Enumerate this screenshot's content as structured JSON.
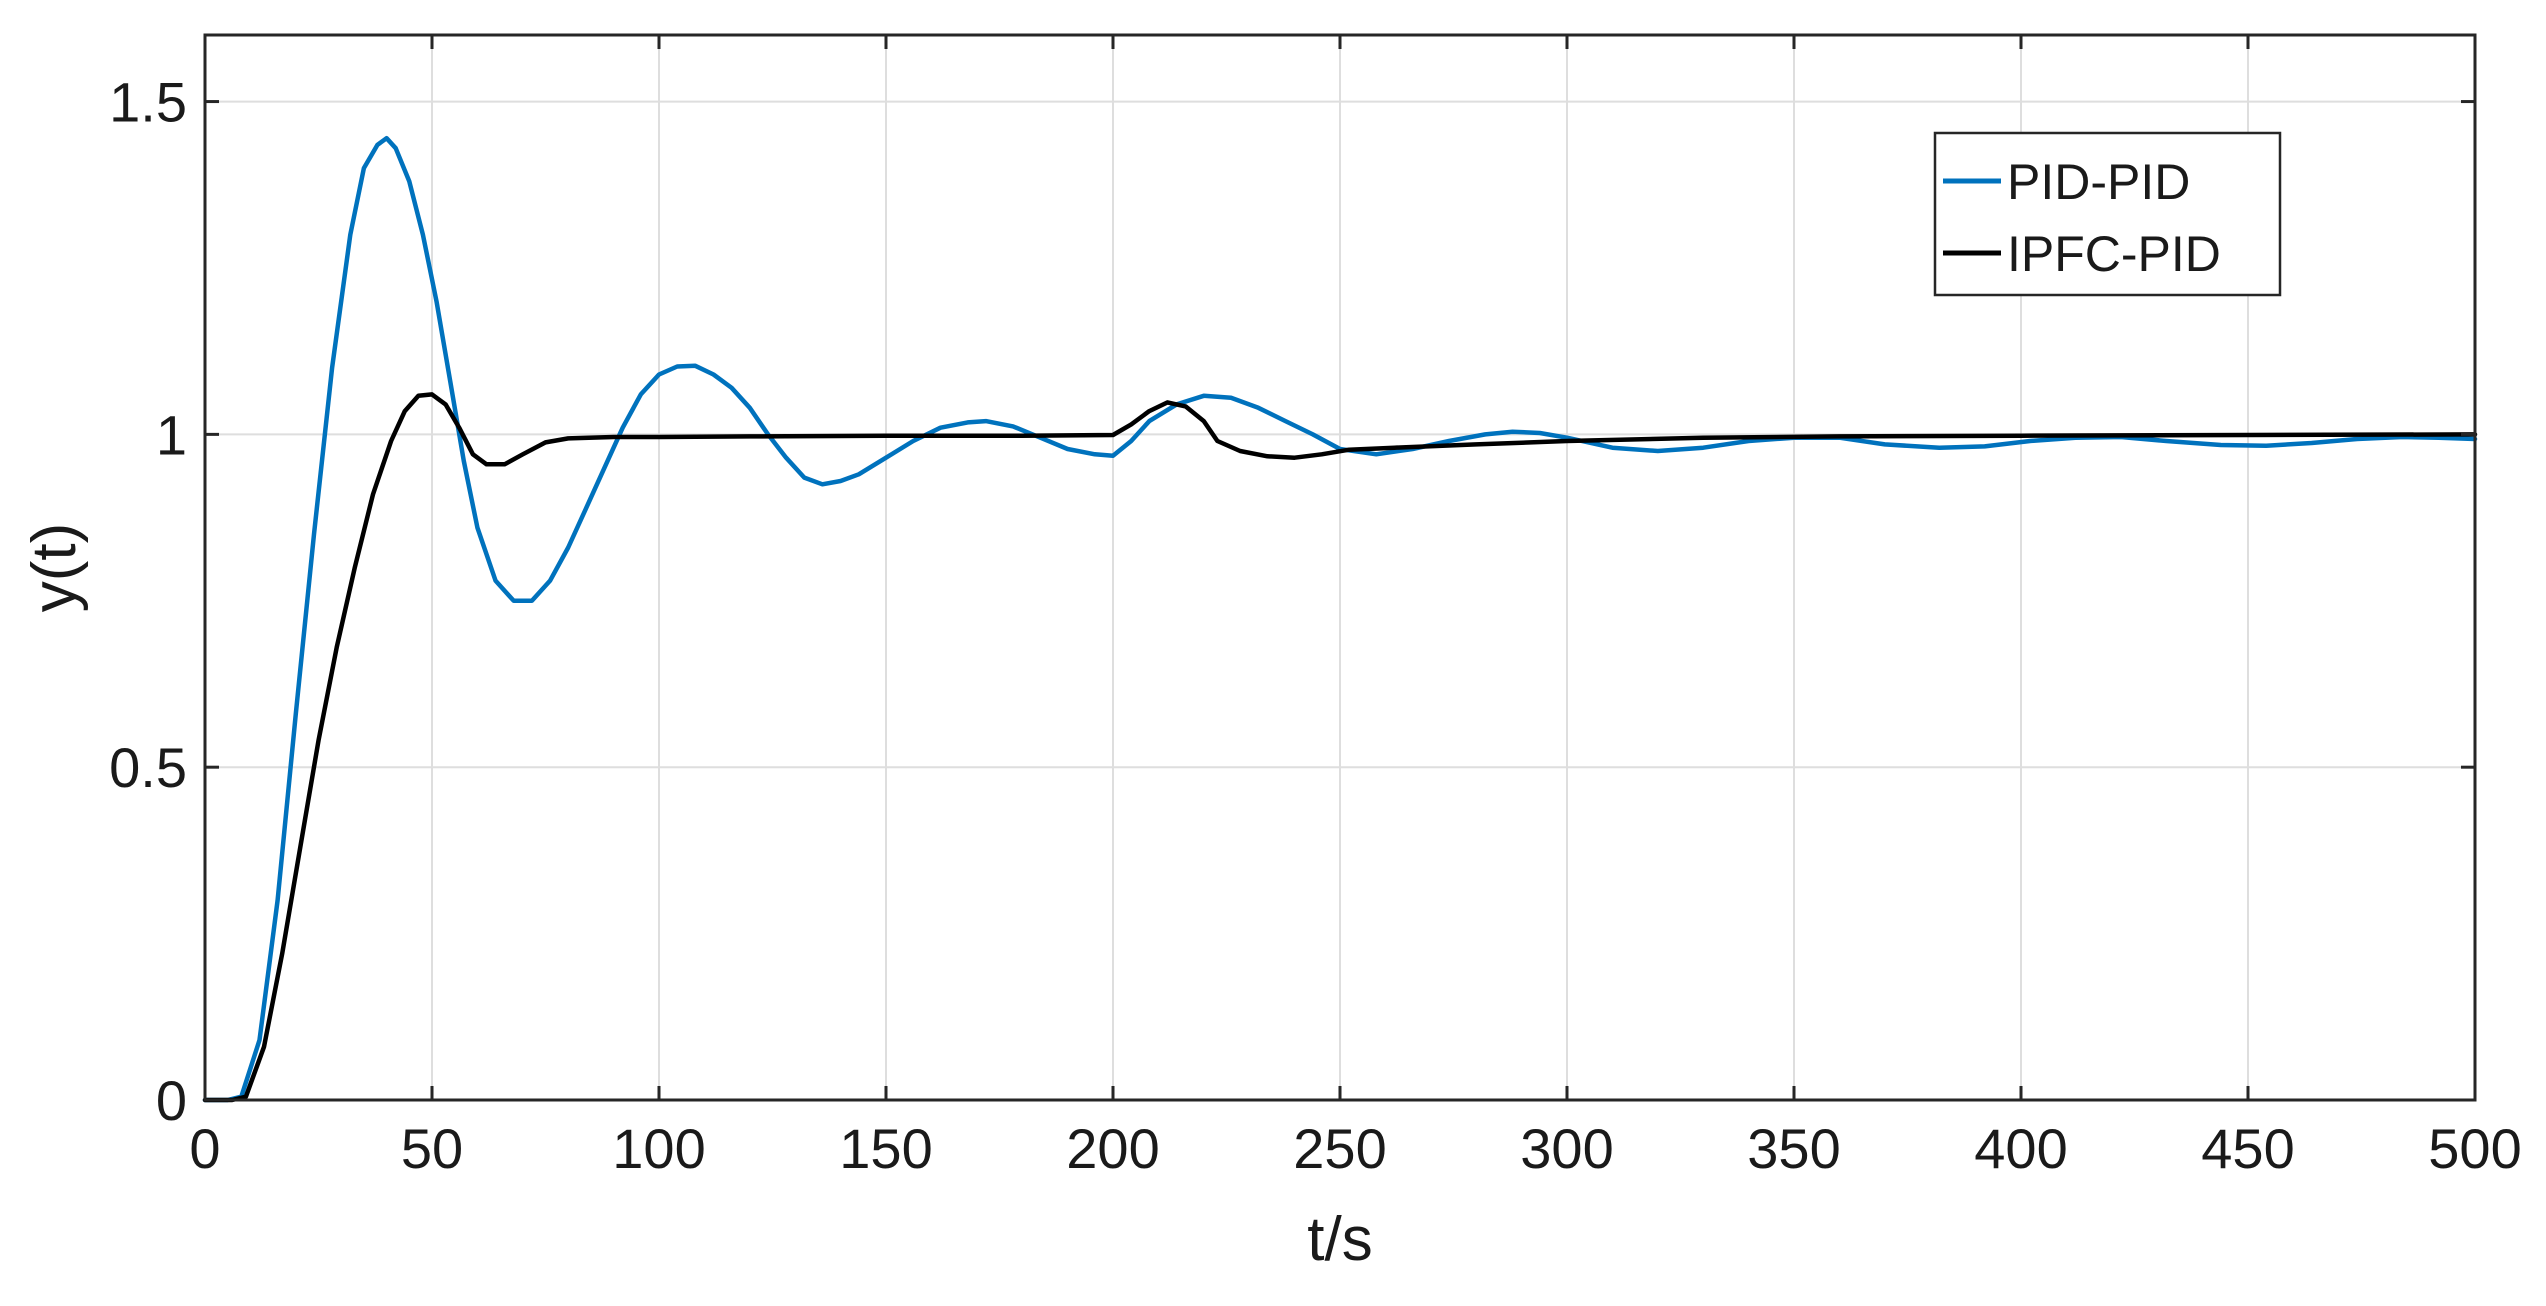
{
  "chart_data": {
    "type": "line",
    "title": "",
    "xlabel": "t/s",
    "ylabel": "y(t)",
    "xlim": [
      0,
      500
    ],
    "ylim": [
      0,
      1.6
    ],
    "xticks": [
      0,
      50,
      100,
      150,
      200,
      250,
      300,
      350,
      400,
      450,
      500
    ],
    "yticks": [
      0,
      0.5,
      1,
      1.5
    ],
    "xtick_labels": [
      "0",
      "50",
      "100",
      "150",
      "200",
      "250",
      "300",
      "350",
      "400",
      "450",
      "500"
    ],
    "ytick_labels": [
      "0",
      "0.5",
      "1",
      "1.5"
    ],
    "grid": true,
    "legend_position": "top-right",
    "series": [
      {
        "name": "PID-PID",
        "color": "#0072BD",
        "points": [
          [
            0,
            0
          ],
          [
            5,
            0
          ],
          [
            8,
            0.005
          ],
          [
            12,
            0.09
          ],
          [
            16,
            0.3
          ],
          [
            20,
            0.58
          ],
          [
            24,
            0.85
          ],
          [
            28,
            1.1
          ],
          [
            32,
            1.3
          ],
          [
            35,
            1.4
          ],
          [
            38,
            1.435
          ],
          [
            40,
            1.445
          ],
          [
            42,
            1.43
          ],
          [
            45,
            1.38
          ],
          [
            48,
            1.3
          ],
          [
            51,
            1.2
          ],
          [
            54,
            1.08
          ],
          [
            57,
            0.96
          ],
          [
            60,
            0.86
          ],
          [
            64,
            0.78
          ],
          [
            68,
            0.75
          ],
          [
            72,
            0.75
          ],
          [
            76,
            0.78
          ],
          [
            80,
            0.83
          ],
          [
            84,
            0.89
          ],
          [
            88,
            0.95
          ],
          [
            92,
            1.01
          ],
          [
            96,
            1.06
          ],
          [
            100,
            1.09
          ],
          [
            104,
            1.102
          ],
          [
            108,
            1.103
          ],
          [
            112,
            1.09
          ],
          [
            116,
            1.07
          ],
          [
            120,
            1.04
          ],
          [
            124,
            1.0
          ],
          [
            128,
            0.965
          ],
          [
            132,
            0.935
          ],
          [
            136,
            0.925
          ],
          [
            140,
            0.93
          ],
          [
            144,
            0.94
          ],
          [
            150,
            0.965
          ],
          [
            156,
            0.99
          ],
          [
            162,
            1.01
          ],
          [
            168,
            1.018
          ],
          [
            172,
            1.02
          ],
          [
            178,
            1.012
          ],
          [
            184,
            0.995
          ],
          [
            190,
            0.978
          ],
          [
            196,
            0.97
          ],
          [
            200,
            0.968
          ],
          [
            204,
            0.99
          ],
          [
            208,
            1.02
          ],
          [
            214,
            1.045
          ],
          [
            220,
            1.058
          ],
          [
            226,
            1.055
          ],
          [
            232,
            1.04
          ],
          [
            238,
            1.02
          ],
          [
            244,
            1.0
          ],
          [
            250,
            0.978
          ],
          [
            258,
            0.97
          ],
          [
            266,
            0.978
          ],
          [
            274,
            0.99
          ],
          [
            282,
            1.0
          ],
          [
            288,
            1.004
          ],
          [
            294,
            1.002
          ],
          [
            300,
            0.995
          ],
          [
            310,
            0.98
          ],
          [
            320,
            0.975
          ],
          [
            330,
            0.98
          ],
          [
            340,
            0.99
          ],
          [
            350,
            0.995
          ],
          [
            360,
            0.995
          ],
          [
            370,
            0.985
          ],
          [
            382,
            0.98
          ],
          [
            392,
            0.982
          ],
          [
            402,
            0.99
          ],
          [
            412,
            0.995
          ],
          [
            422,
            0.996
          ],
          [
            432,
            0.99
          ],
          [
            444,
            0.984
          ],
          [
            454,
            0.983
          ],
          [
            464,
            0.987
          ],
          [
            474,
            0.993
          ],
          [
            484,
            0.996
          ],
          [
            492,
            0.995
          ],
          [
            500,
            0.993
          ]
        ]
      },
      {
        "name": "IPFC-PID",
        "color": "#000000",
        "points": [
          [
            0,
            0
          ],
          [
            6,
            0
          ],
          [
            9,
            0.005
          ],
          [
            13,
            0.08
          ],
          [
            17,
            0.22
          ],
          [
            21,
            0.38
          ],
          [
            25,
            0.54
          ],
          [
            29,
            0.68
          ],
          [
            33,
            0.8
          ],
          [
            37,
            0.91
          ],
          [
            41,
            0.99
          ],
          [
            44,
            1.035
          ],
          [
            47,
            1.058
          ],
          [
            50,
            1.06
          ],
          [
            53,
            1.045
          ],
          [
            56,
            1.01
          ],
          [
            59,
            0.97
          ],
          [
            62,
            0.955
          ],
          [
            66,
            0.955
          ],
          [
            70,
            0.97
          ],
          [
            75,
            0.988
          ],
          [
            80,
            0.994
          ],
          [
            90,
            0.996
          ],
          [
            100,
            0.996
          ],
          [
            120,
            0.997
          ],
          [
            150,
            0.998
          ],
          [
            180,
            0.998
          ],
          [
            200,
            0.999
          ],
          [
            204,
            1.015
          ],
          [
            208,
            1.035
          ],
          [
            212,
            1.048
          ],
          [
            216,
            1.042
          ],
          [
            220,
            1.02
          ],
          [
            223,
            0.99
          ],
          [
            228,
            0.975
          ],
          [
            234,
            0.967
          ],
          [
            240,
            0.965
          ],
          [
            246,
            0.97
          ],
          [
            252,
            0.977
          ],
          [
            262,
            0.98
          ],
          [
            280,
            0.985
          ],
          [
            300,
            0.99
          ],
          [
            330,
            0.995
          ],
          [
            360,
            0.997
          ],
          [
            400,
            0.998
          ],
          [
            450,
            0.999
          ],
          [
            500,
            1.0
          ]
        ]
      }
    ]
  }
}
